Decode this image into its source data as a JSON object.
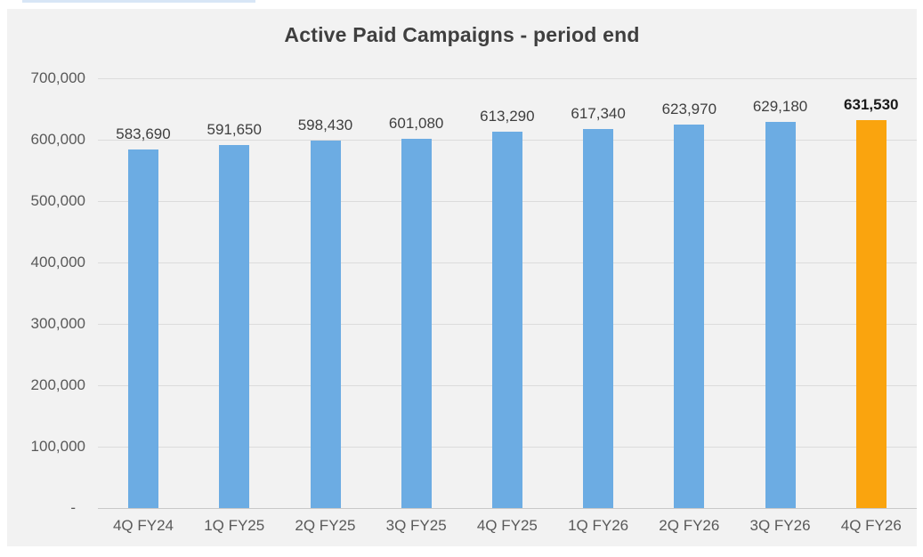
{
  "page": {
    "background": "#ffffff",
    "accent_line_color": "#d8e6f6"
  },
  "chart_data": {
    "type": "bar",
    "title": "Active Paid Campaigns - period end",
    "categories": [
      "4Q FY24",
      "1Q FY25",
      "2Q FY25",
      "3Q FY25",
      "4Q FY25",
      "1Q FY26",
      "2Q FY26",
      "3Q FY26",
      "4Q FY26"
    ],
    "values": [
      583690,
      591650,
      598430,
      601080,
      613290,
      617340,
      623970,
      629180,
      631530
    ],
    "data_labels": [
      "583,690",
      "591,650",
      "598,430",
      "601,080",
      "613,290",
      "617,340",
      "623,970",
      "629,180",
      "631,530"
    ],
    "xlabel": "",
    "ylabel": "",
    "ylim": [
      0,
      700000
    ],
    "ytick_step": 100000,
    "ytick_labels_top_to_bottom": [
      "700,000",
      "600,000",
      "500,000",
      "400,000",
      "300,000",
      "200,000",
      "100,000",
      "-"
    ],
    "grid": true,
    "legend": "none",
    "plot_background": "#f2f2f2",
    "gridline_color": "#dcdcdc",
    "axis_text_color": "#595959",
    "label_text_color": "#3f3f3f",
    "bar_color": "#6cace3",
    "highlight_color": "#faa40e",
    "highlight_index": 8
  }
}
